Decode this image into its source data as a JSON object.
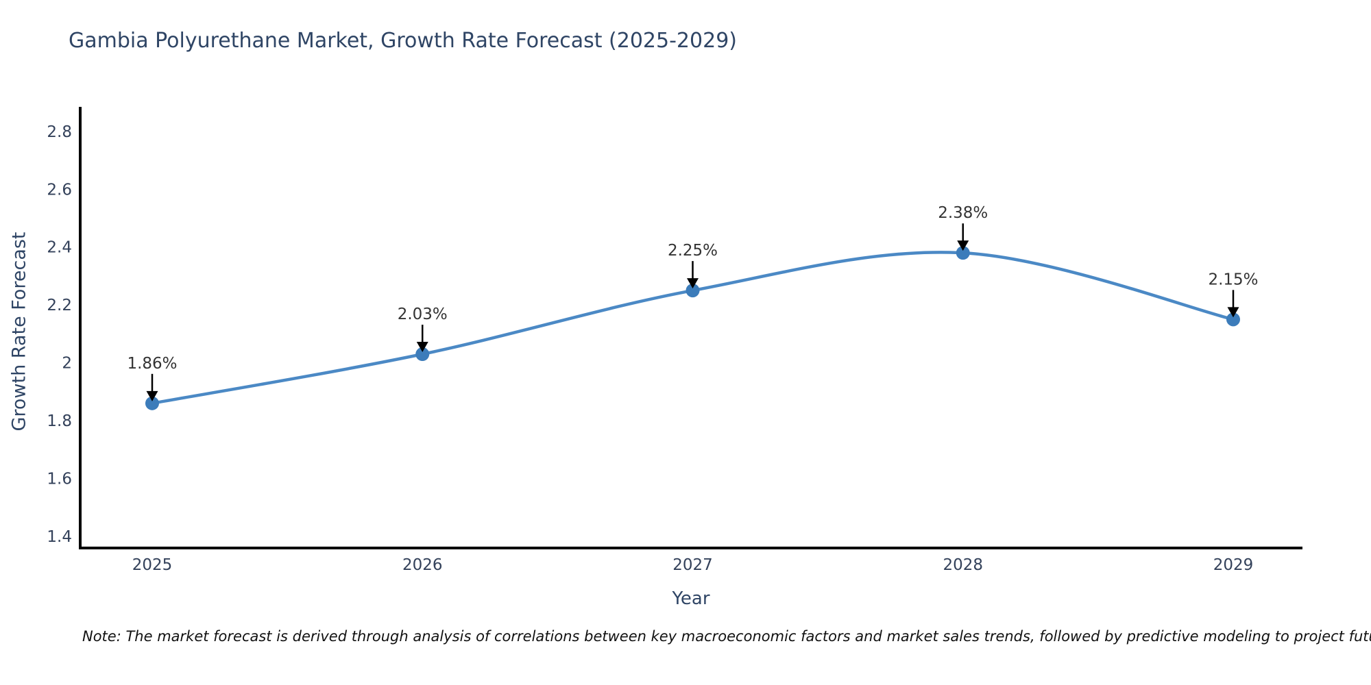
{
  "chart": {
    "title": "Gambia Polyurethane Market, Growth Rate Forecast (2025-2029)",
    "xlabel": "Year",
    "ylabel": "Growth Rate Forecast"
  },
  "note": "Note: The market forecast is derived through analysis of correlations between key macroeconomic factors and market sales trends, followed by predictive modeling to project future sales",
  "chart_data": {
    "type": "line",
    "title": "Gambia Polyurethane Market, Growth Rate Forecast (2025-2029)",
    "xlabel": "Year",
    "ylabel": "Growth Rate Forecast",
    "x": [
      2025,
      2026,
      2027,
      2028,
      2029
    ],
    "series": [
      {
        "name": "Growth Rate Forecast",
        "values": [
          1.86,
          2.03,
          2.25,
          2.38,
          2.15
        ]
      }
    ],
    "point_labels": [
      "1.86%",
      "2.03%",
      "2.25%",
      "2.38%",
      "2.15%"
    ],
    "yticks": [
      1.4,
      1.6,
      1.8,
      2,
      2.2,
      2.4,
      2.6,
      2.8
    ],
    "xticks": [
      2025,
      2026,
      2027,
      2028,
      2029
    ],
    "ylim": [
      1.36,
      2.88
    ],
    "grid": false,
    "legend_position": "none",
    "line_shape": "spline",
    "annotation_style": "black-arrow-down-to-point",
    "colors": {
      "line": "#4b89c5",
      "marker": "#3c7cba",
      "axis": "#000000",
      "tick_text": "#33415a",
      "title_text": "#2f4565",
      "annotation_text": "#333333",
      "arrow": "#000000",
      "background": "#ffffff"
    }
  }
}
